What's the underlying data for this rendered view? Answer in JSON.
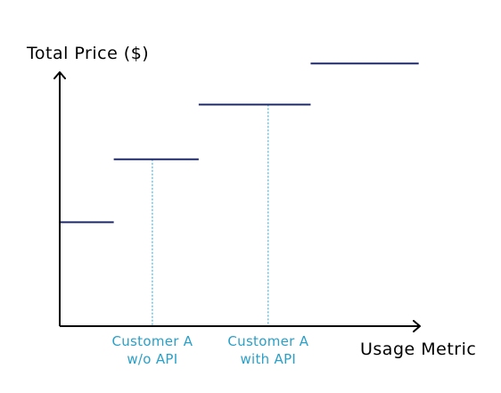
{
  "chart_data": {
    "type": "line",
    "title": "",
    "ylabel": "Total Price ($)",
    "xlabel": "Usage Metric",
    "grid": false,
    "legend": "none",
    "axis_ticks": false,
    "xlim": [
      0,
      100
    ],
    "ylim": [
      0,
      100
    ],
    "series": [
      {
        "line_style": "step",
        "color": "#1f2a6b",
        "steps": [
          {
            "x_start": 0,
            "x_end": 14,
            "y": 38
          },
          {
            "x_start": 14,
            "x_end": 36,
            "y": 61
          },
          {
            "x_start": 36,
            "x_end": 65,
            "y": 81
          },
          {
            "x_start": 65,
            "x_end": 93,
            "y": 96
          }
        ]
      }
    ],
    "annotations": [
      {
        "x": 24,
        "label_line1": "Customer A",
        "label_line2": "w/o API",
        "color": "#2aa0c8",
        "line_style": "dashed"
      },
      {
        "x": 54,
        "label_line1": "Customer A",
        "label_line2": "with API",
        "color": "#2aa0c8",
        "line_style": "dashed"
      }
    ]
  }
}
